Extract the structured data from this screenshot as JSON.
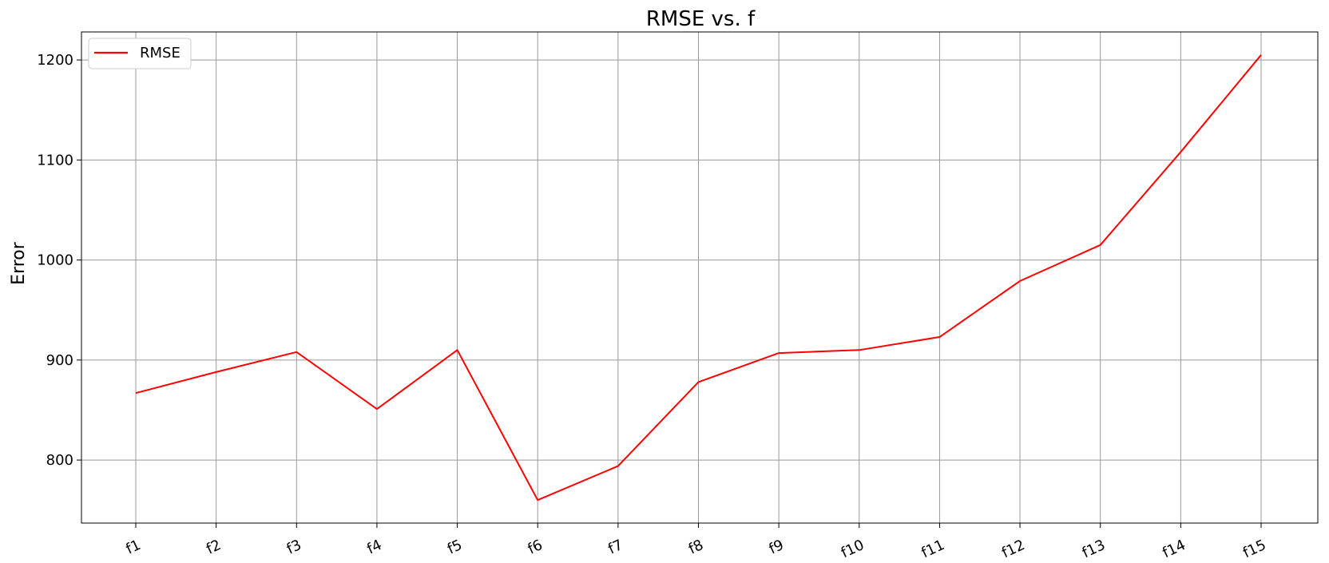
{
  "chart_data": {
    "type": "line",
    "title": "RMSE vs. f",
    "xlabel": "",
    "ylabel": "Error",
    "categories": [
      "f1",
      "f2",
      "f3",
      "f4",
      "f5",
      "f6",
      "f7",
      "f8",
      "f9",
      "f10",
      "f11",
      "f12",
      "f13",
      "f14",
      "f15"
    ],
    "series": [
      {
        "name": "RMSE",
        "color": "#ff0000",
        "values": [
          867,
          888,
          908,
          851,
          910,
          760,
          794,
          878,
          907,
          910,
          923,
          979,
          1015,
          1108,
          1205
        ]
      }
    ],
    "yticks": [
      800,
      900,
      1000,
      1100,
      1200
    ],
    "ylim": [
      737,
      1228
    ],
    "grid": true,
    "legend_position": "top-left"
  }
}
